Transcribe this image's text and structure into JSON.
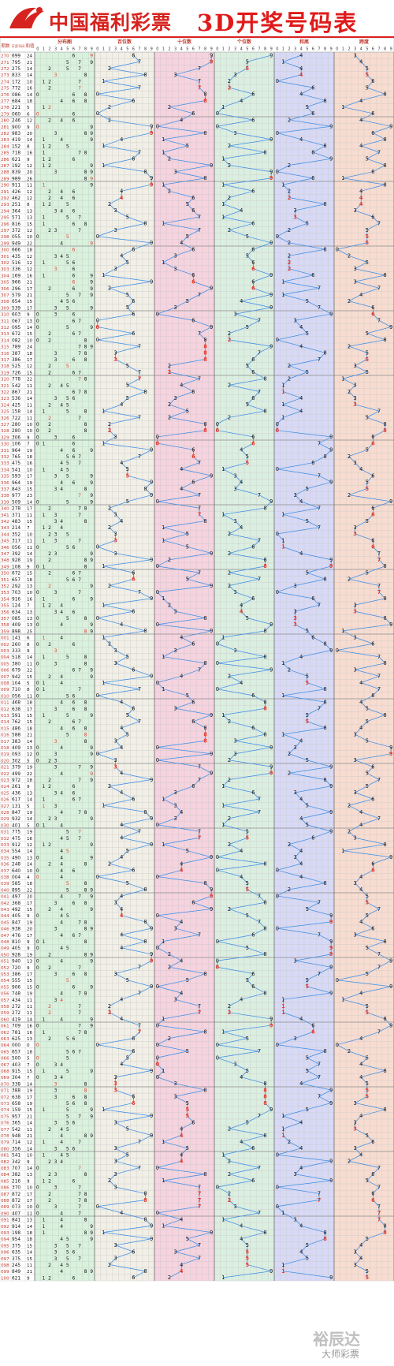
{
  "header": {
    "brand": "中国福利彩票",
    "title": "3D开奖号码表"
  },
  "watermark": {
    "line1": "裕辰达",
    "line2": "大师彩票"
  },
  "table_headers": {
    "col_issue": "期数",
    "col_draw": "开奖号码",
    "col_sum": "和值",
    "groups": [
      "分布图",
      "百位数",
      "十位数",
      "个位数",
      "和尾",
      "跨度"
    ]
  },
  "colors": {
    "brand_red": "#d7231f",
    "line_blue": "#3b8ee8",
    "hit_red": "#e23b2e",
    "group_bgs": [
      "#d8f2dc",
      "#f1efe6",
      "#f7d2df",
      "#dbefe1",
      "#d8d9f6",
      "#f8dcd0"
    ]
  },
  "chart_data": {
    "type": "table",
    "title": "3D开奖号码表",
    "columns": [
      "期数",
      "开奖号码",
      "和值"
    ],
    "rows": [
      [
        "270",
        "699",
        24
      ],
      [
        "271",
        "795",
        21
      ],
      [
        "272",
        "275",
        14
      ],
      [
        "273",
        "833",
        14
      ],
      [
        "274",
        "172",
        10
      ],
      [
        "275",
        "772",
        16
      ],
      [
        "276",
        "086",
        14
      ],
      [
        "277",
        "684",
        18
      ],
      [
        "278",
        "221",
        5
      ],
      [
        "279",
        "060",
        6
      ],
      [
        "280",
        "246",
        12
      ],
      [
        "281",
        "900",
        9
      ],
      [
        "282",
        "983",
        20
      ],
      [
        "283",
        "419",
        14
      ],
      [
        "284",
        "152",
        8
      ],
      [
        "285",
        "718",
        16
      ],
      [
        "286",
        "621",
        9
      ],
      [
        "287",
        "192",
        12
      ],
      [
        "288",
        "839",
        20
      ],
      [
        "289",
        "989",
        26
      ],
      [
        "290",
        "911",
        11
      ],
      [
        "291",
        "426",
        12
      ],
      [
        "292",
        "462",
        12
      ],
      [
        "293",
        "251",
        8
      ],
      [
        "294",
        "364",
        13
      ],
      [
        "295",
        "571",
        13
      ],
      [
        "296",
        "816",
        15
      ],
      [
        "297",
        "372",
        12
      ],
      [
        "298",
        "055",
        10
      ],
      [
        "299",
        "949",
        22
      ],
      [
        "300",
        "666",
        18
      ],
      [
        "301",
        "435",
        12
      ],
      [
        "302",
        "516",
        12
      ],
      [
        "303",
        "336",
        12
      ],
      [
        "304",
        "169",
        16
      ],
      [
        "305",
        "966",
        21
      ],
      [
        "306",
        "296",
        17
      ],
      [
        "307",
        "579",
        21
      ],
      [
        "308",
        "654",
        15
      ],
      [
        "309",
        "539",
        17
      ],
      [
        "310",
        "603",
        9
      ],
      [
        "311",
        "067",
        13
      ],
      [
        "312",
        "095",
        14
      ],
      [
        "313",
        "672",
        15
      ],
      [
        "314",
        "082",
        10
      ],
      [
        "315",
        "789",
        24
      ],
      [
        "316",
        "387",
        18
      ],
      [
        "317",
        "386",
        17
      ],
      [
        "318",
        "525",
        12
      ],
      [
        "319",
        "726",
        15
      ],
      [
        "320",
        "778",
        22
      ],
      [
        "321",
        "542",
        11
      ],
      [
        "322",
        "867",
        21
      ],
      [
        "323",
        "536",
        14
      ],
      [
        "324",
        "425",
        11
      ],
      [
        "325",
        "158",
        14
      ],
      [
        "326",
        "722",
        11
      ],
      [
        "327",
        "280",
        10
      ],
      [
        "328",
        "280",
        10
      ],
      [
        "329",
        "306",
        9
      ],
      [
        "330",
        "106",
        7
      ],
      [
        "331",
        "964",
        19
      ],
      [
        "332",
        "765",
        18
      ],
      [
        "333",
        "475",
        16
      ],
      [
        "334",
        "541",
        10
      ],
      [
        "335",
        "593",
        17
      ],
      [
        "336",
        "964",
        19
      ],
      [
        "337",
        "843",
        15
      ],
      [
        "338",
        "977",
        23
      ],
      [
        "339",
        "509",
        14
      ],
      [
        "340",
        "278",
        17
      ],
      [
        "341",
        "371",
        11
      ],
      [
        "342",
        "483",
        15
      ],
      [
        "343",
        "214",
        7
      ],
      [
        "344",
        "352",
        10
      ],
      [
        "345",
        "317",
        11
      ],
      [
        "346",
        "056",
        11
      ],
      [
        "347",
        "392",
        14
      ],
      [
        "348",
        "928",
        19
      ],
      [
        "349",
        "108",
        9
      ],
      [
        "350",
        "672",
        15
      ],
      [
        "351",
        "657",
        18
      ],
      [
        "352",
        "292",
        13
      ],
      [
        "353",
        "703",
        10
      ],
      [
        "354",
        "916",
        16
      ],
      [
        "355",
        "124",
        7
      ],
      [
        "356",
        "634",
        13
      ],
      [
        "357",
        "085",
        13
      ],
      [
        "358",
        "409",
        13
      ],
      [
        "359",
        "898",
        25
      ],
      [
        "001",
        "141",
        6
      ],
      [
        "002",
        "260",
        8
      ],
      [
        "003",
        "333",
        9
      ],
      [
        "004",
        "518",
        14
      ],
      [
        "005",
        "380",
        11
      ],
      [
        "006",
        "679",
        22
      ],
      [
        "007",
        "942",
        15
      ],
      [
        "008",
        "104",
        5
      ],
      [
        "009",
        "710",
        8
      ],
      [
        "010",
        "056",
        11
      ],
      [
        "011",
        "468",
        18
      ],
      [
        "012",
        "638",
        17
      ],
      [
        "013",
        "591",
        15
      ],
      [
        "014",
        "762",
        15
      ],
      [
        "015",
        "486",
        18
      ],
      [
        "016",
        "588",
        21
      ],
      [
        "017",
        "383",
        14
      ],
      [
        "018",
        "409",
        13
      ],
      [
        "019",
        "093",
        12
      ],
      [
        "020",
        "302",
        5
      ],
      [
        "021",
        "379",
        19
      ],
      [
        "022",
        "499",
        22
      ],
      [
        "023",
        "972",
        18
      ],
      [
        "024",
        "261",
        9
      ],
      [
        "025",
        "436",
        13
      ],
      [
        "026",
        "617",
        14
      ],
      [
        "027",
        "131",
        5
      ],
      [
        "028",
        "847",
        19
      ],
      [
        "029",
        "932",
        14
      ],
      [
        "030",
        "401",
        5
      ],
      [
        "031",
        "775",
        19
      ],
      [
        "032",
        "475",
        16
      ],
      [
        "033",
        "912",
        12
      ],
      [
        "034",
        "554",
        14
      ],
      [
        "035",
        "490",
        13
      ],
      [
        "036",
        "248",
        14
      ],
      [
        "037",
        "640",
        10
      ],
      [
        "038",
        "004",
        4
      ],
      [
        "039",
        "585",
        18
      ],
      [
        "040",
        "895",
        22
      ],
      [
        "041",
        "497",
        20
      ],
      [
        "042",
        "368",
        17
      ],
      [
        "043",
        "492",
        15
      ],
      [
        "044",
        "405",
        9
      ],
      [
        "045",
        "847",
        19
      ],
      [
        "046",
        "938",
        20
      ],
      [
        "047",
        "476",
        17
      ],
      [
        "048",
        "810",
        9
      ],
      [
        "049",
        "405",
        9
      ],
      [
        "050",
        "928",
        19
      ],
      [
        "051",
        "940",
        13
      ],
      [
        "052",
        "720",
        9
      ],
      [
        "053",
        "386",
        17
      ],
      [
        "054",
        "555",
        15
      ],
      [
        "055",
        "906",
        15
      ],
      [
        "056",
        "748",
        19
      ],
      [
        "057",
        "434",
        11
      ],
      [
        "058",
        "272",
        11
      ],
      [
        "059",
        "272",
        11
      ],
      [
        "060",
        "419",
        14
      ],
      [
        "061",
        "709",
        16
      ],
      [
        "062",
        "781",
        16
      ],
      [
        "063",
        "625",
        13
      ],
      [
        "064",
        "000",
        0
      ],
      [
        "065",
        "657",
        18
      ],
      [
        "066",
        "500",
        5
      ],
      [
        "067",
        "403",
        7
      ],
      [
        "068",
        "915",
        15
      ],
      [
        "069",
        "304",
        7
      ],
      [
        "070",
        "338",
        14
      ],
      [
        "071",
        "388",
        19
      ],
      [
        "072",
        "638",
        17
      ],
      [
        "073",
        "658",
        19
      ],
      [
        "074",
        "159",
        15
      ],
      [
        "075",
        "957",
        21
      ],
      [
        "076",
        "365",
        14
      ],
      [
        "077",
        "542",
        11
      ],
      [
        "078",
        "948",
        21
      ],
      [
        "079",
        "714",
        12
      ],
      [
        "080",
        "356",
        14
      ],
      [
        "081",
        "541",
        10
      ],
      [
        "082",
        "342",
        9
      ],
      [
        "083",
        "707",
        14
      ],
      [
        "084",
        "382",
        13
      ],
      [
        "085",
        "216",
        9
      ],
      [
        "086",
        "370",
        10
      ],
      [
        "087",
        "872",
        17
      ],
      [
        "088",
        "872",
        17
      ],
      [
        "089",
        "073",
        10
      ],
      [
        "090",
        "407",
        11
      ],
      [
        "091",
        "841",
        13
      ],
      [
        "092",
        "914",
        14
      ],
      [
        "093",
        "198",
        18
      ],
      [
        "094",
        "954",
        18
      ],
      [
        "095",
        "375",
        15
      ],
      [
        "096",
        "635",
        14
      ],
      [
        "097",
        "375",
        15
      ],
      [
        "098",
        "245",
        11
      ],
      [
        "099",
        "849",
        21
      ],
      [
        "100",
        "621",
        9
      ]
    ]
  }
}
